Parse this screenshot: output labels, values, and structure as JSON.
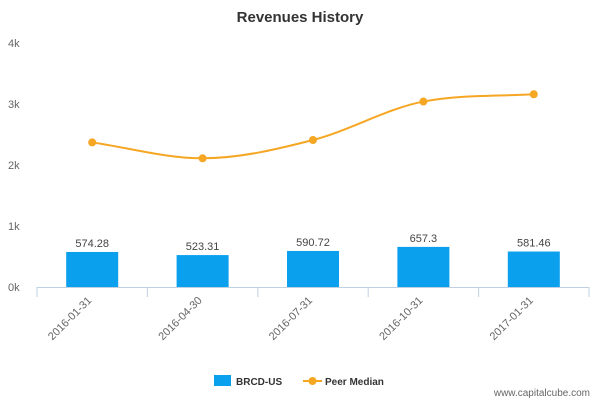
{
  "chart_data": {
    "type": "bar",
    "title": "Revenues History",
    "categories": [
      "2016-01-31",
      "2016-04-30",
      "2016-07-31",
      "2016-10-31",
      "2017-01-31"
    ],
    "series": [
      {
        "name": "BRCD-US",
        "type": "bar",
        "color": "#0aa0ee",
        "values": [
          574.28,
          523.31,
          590.72,
          657.3,
          581.46
        ],
        "labels": [
          "574.28",
          "523.31",
          "590.72",
          "657.3",
          "581.46"
        ]
      },
      {
        "name": "Peer Median",
        "type": "line",
        "color": "#f5a623",
        "values": [
          2370,
          2110,
          2410,
          3040,
          3160
        ]
      }
    ],
    "ylim": [
      0,
      4000
    ],
    "yticks": [
      0,
      1000,
      2000,
      3000,
      4000
    ],
    "ytick_labels": [
      "0k",
      "1k",
      "2k",
      "3k",
      "4k"
    ],
    "grid": false,
    "legend_position": "bottom-center"
  },
  "source_text": "www.capitalcube.com"
}
